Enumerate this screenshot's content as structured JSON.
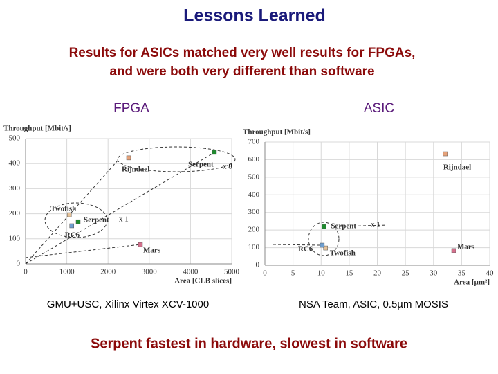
{
  "title": "Lessons Learned",
  "subtitle": [
    "Results for ASICs matched very well results for FPGAs,",
    "and were both very different than software"
  ],
  "chart_data": [
    {
      "type": "scatter",
      "title": "FPGA",
      "y_label": "Throughput [Mbit/s]",
      "x_label": "Area [CLB slices]",
      "xlim": [
        0,
        5000
      ],
      "ylim": [
        0,
        500
      ],
      "xticks": [
        0,
        1000,
        2000,
        3000,
        4000,
        5000
      ],
      "yticks": [
        0,
        100,
        200,
        300,
        400,
        500
      ],
      "grid": true,
      "series": [
        {
          "name": "Serpent",
          "color": "#1e8a2e",
          "x": [
            4580,
            1275
          ],
          "values": [
            445,
            168
          ]
        },
        {
          "name": "Rijndael",
          "color": "#e6a27a",
          "x": [
            2500
          ],
          "values": [
            423
          ]
        },
        {
          "name": "Twofish",
          "color": "#e8c49a",
          "x": [
            1060
          ],
          "values": [
            196
          ]
        },
        {
          "name": "RC6",
          "color": "#6f9fd0",
          "x": [
            1120
          ],
          "values": [
            152
          ]
        },
        {
          "name": "Mars",
          "color": "#d46f8c",
          "x": [
            2785
          ],
          "values": [
            77
          ]
        }
      ],
      "annotations": [
        "x 8",
        "x 1"
      ],
      "caption": "GMU+USC, Xilinx Virtex XCV-1000"
    },
    {
      "type": "scatter",
      "title": "ASIC",
      "y_label": "Throughput [Mbit/s]",
      "x_label": "Area [µm²]",
      "xlim": [
        0,
        40
      ],
      "ylim": [
        0,
        700
      ],
      "xticks": [
        0,
        5,
        10,
        15,
        20,
        25,
        30,
        35,
        40
      ],
      "yticks": [
        0,
        100,
        200,
        300,
        400,
        500,
        600,
        700
      ],
      "grid": true,
      "series": [
        {
          "name": "Serpent",
          "color": "#1e8a2e",
          "x": [
            10.5
          ],
          "values": [
            220
          ]
        },
        {
          "name": "Rijndael",
          "color": "#e6a27a",
          "x": [
            32.1
          ],
          "values": [
            633
          ]
        },
        {
          "name": "Twofish",
          "color": "#e8c49a",
          "x": [
            10.8
          ],
          "values": [
            98
          ]
        },
        {
          "name": "RC6",
          "color": "#6f9fd0",
          "x": [
            10.2
          ],
          "values": [
            114
          ]
        },
        {
          "name": "Mars",
          "color": "#d46f8c",
          "x": [
            33.6
          ],
          "values": [
            83
          ]
        }
      ],
      "annotations": [
        "x 1"
      ],
      "caption": "NSA Team, ASIC, 0.5µm MOSIS"
    }
  ],
  "footer": "Serpent fastest in hardware, slowest in software"
}
